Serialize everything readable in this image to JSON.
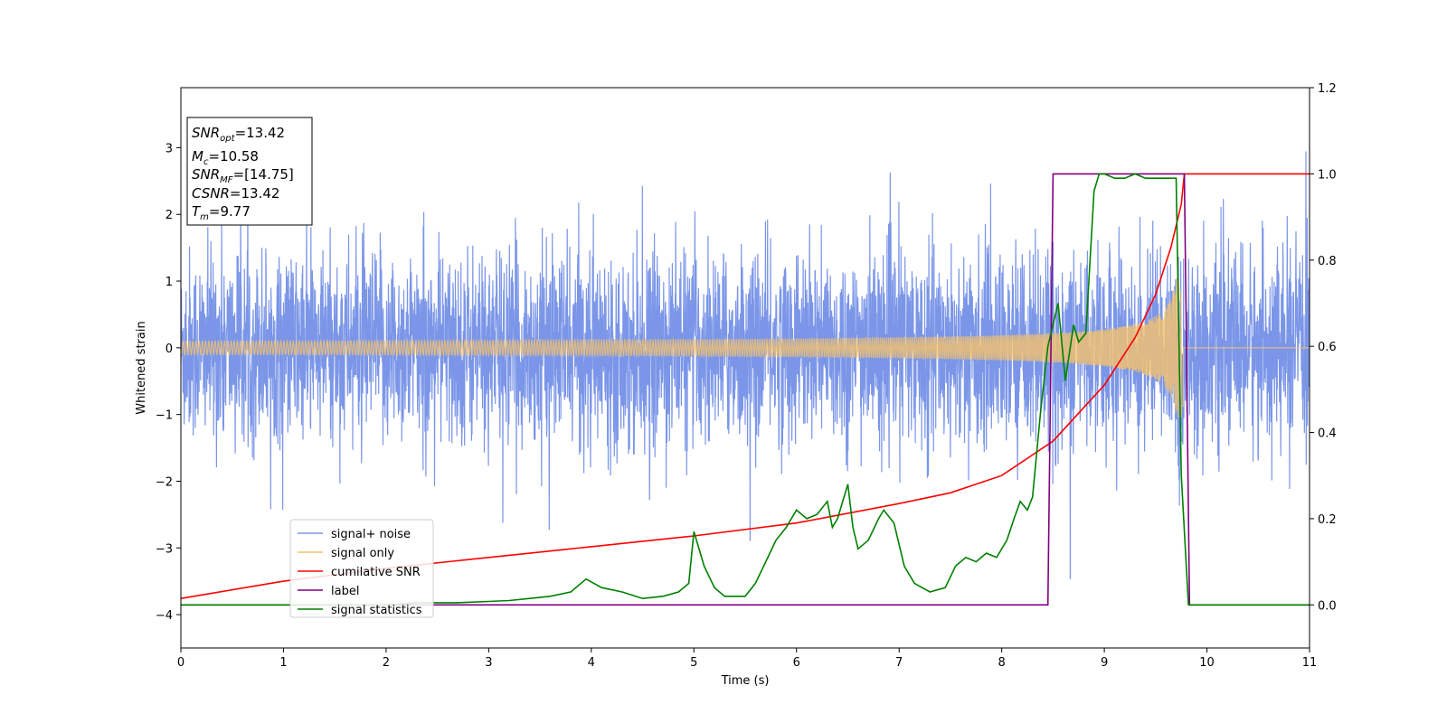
{
  "chart_data": {
    "type": "line",
    "xlabel": "Time (s)",
    "ylabel": "Whitened strain",
    "xlim": [
      0,
      11
    ],
    "ylim": [
      -4.5,
      3.9
    ],
    "y2lim": [
      -0.1,
      1.2
    ],
    "x_ticks": [
      "0",
      "1",
      "2",
      "3",
      "4",
      "5",
      "6",
      "7",
      "8",
      "9",
      "10",
      "11"
    ],
    "y_ticks": [
      "3",
      "2",
      "1",
      "0",
      "−1",
      "−2",
      "−3",
      "−4"
    ],
    "y2_ticks": [
      "1.2",
      "1.0",
      "0.8",
      "0.6",
      "0.4",
      "0.2",
      "0.0"
    ],
    "grid": false,
    "legend_position": "lower-left",
    "info_box": {
      "snr_opt": {
        "sym": "SNR",
        "sub": "opt",
        "value": "=13.42"
      },
      "mc": {
        "sym": "M",
        "sub": "c",
        "value": "=10.58"
      },
      "snr_mf": {
        "sym": "SNR",
        "sub": "MF",
        "value": "=[14.75]"
      },
      "csnr": {
        "sym": "CSNR",
        "sub": "",
        "value": "=13.42"
      },
      "tm": {
        "sym": "T",
        "sub": "m",
        "value": "=9.77"
      }
    },
    "series": [
      {
        "name": "signal+ noise",
        "axis": "left",
        "color": "#7b96e8",
        "description": "whitened noisy strain, amplitude roughly ±2 with spikes to ±3.5 across 0–11 s"
      },
      {
        "name": "signal only",
        "axis": "left",
        "color": "#f5c26b",
        "chirp_end": 9.77,
        "amplitude_start": 0.05,
        "amplitude_end": 1.0
      },
      {
        "name": "cumilative SNR",
        "axis": "right",
        "color": "#ff0000",
        "x": [
          0,
          1,
          2,
          3,
          4,
          5,
          6,
          7,
          7.5,
          8,
          8.5,
          9,
          9.3,
          9.5,
          9.65,
          9.75,
          9.78,
          11
        ],
        "values": [
          0.015,
          0.055,
          0.085,
          0.11,
          0.135,
          0.16,
          0.19,
          0.235,
          0.26,
          0.3,
          0.38,
          0.51,
          0.62,
          0.72,
          0.83,
          0.93,
          1.0,
          1.0
        ]
      },
      {
        "name": "label",
        "axis": "right",
        "color": "#800080",
        "x": [
          0,
          8.45,
          8.5,
          9.78,
          9.83,
          11
        ],
        "values": [
          0.0,
          0.0,
          1.0,
          1.0,
          0.0,
          0.0
        ]
      },
      {
        "name": "signal statistics",
        "axis": "right",
        "color": "#008000",
        "x": [
          0,
          0.5,
          1,
          1.5,
          2,
          2.3,
          2.7,
          3,
          3.2,
          3.4,
          3.6,
          3.8,
          3.95,
          4.1,
          4.3,
          4.5,
          4.7,
          4.85,
          4.95,
          5.0,
          5.1,
          5.2,
          5.3,
          5.4,
          5.5,
          5.6,
          5.7,
          5.8,
          5.9,
          6.0,
          6.1,
          6.2,
          6.3,
          6.35,
          6.4,
          6.5,
          6.55,
          6.6,
          6.7,
          6.8,
          6.85,
          6.95,
          7.05,
          7.15,
          7.3,
          7.45,
          7.55,
          7.65,
          7.75,
          7.85,
          7.95,
          8.05,
          8.12,
          8.18,
          8.25,
          8.3,
          8.38,
          8.45,
          8.55,
          8.62,
          8.7,
          8.75,
          8.82,
          8.9,
          8.95,
          9.0,
          9.1,
          9.2,
          9.3,
          9.4,
          9.5,
          9.6,
          9.7,
          9.75,
          9.82,
          11
        ],
        "values": [
          0.0,
          0.0,
          0.0,
          0.0,
          0.0,
          0.005,
          0.005,
          0.008,
          0.01,
          0.015,
          0.02,
          0.03,
          0.06,
          0.04,
          0.03,
          0.015,
          0.02,
          0.03,
          0.05,
          0.17,
          0.09,
          0.04,
          0.02,
          0.02,
          0.02,
          0.05,
          0.1,
          0.15,
          0.18,
          0.22,
          0.2,
          0.21,
          0.24,
          0.18,
          0.2,
          0.28,
          0.18,
          0.13,
          0.15,
          0.2,
          0.22,
          0.19,
          0.09,
          0.05,
          0.03,
          0.04,
          0.09,
          0.11,
          0.1,
          0.12,
          0.11,
          0.15,
          0.2,
          0.24,
          0.22,
          0.25,
          0.45,
          0.6,
          0.7,
          0.52,
          0.65,
          0.61,
          0.63,
          0.96,
          1.0,
          1.0,
          0.99,
          0.99,
          1.0,
          0.99,
          0.99,
          0.99,
          0.99,
          0.3,
          0.0,
          0.0
        ]
      }
    ]
  }
}
